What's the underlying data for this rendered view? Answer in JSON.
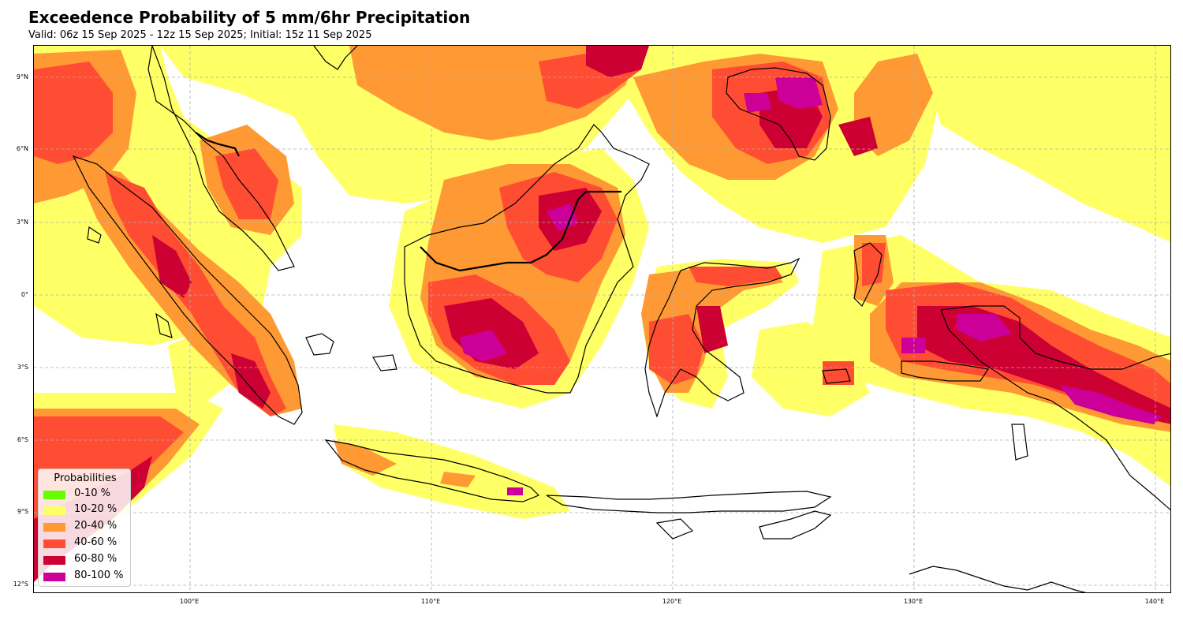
{
  "title": "Exceedence Probability of 5 mm/6hr Precipitation",
  "subtitle": "Valid: 06z 15 Sep 2025 - 12z 15 Sep 2025; Initial: 15z 11 Sep 2025",
  "lat_labels": [
    "9°N",
    "6°N",
    "3°N",
    "0°",
    "3°S",
    "6°S",
    "9°S",
    "12°S"
  ],
  "lon_labels": [
    "100°E",
    "110°E",
    "120°E",
    "130°E",
    "140°E"
  ],
  "legend": {
    "title": "Probabilities",
    "items": [
      {
        "label": "0-10 %",
        "color": "#66ff00"
      },
      {
        "label": "10-20 %",
        "color": "#ffff66"
      },
      {
        "label": "20-40 %",
        "color": "#ff9933"
      },
      {
        "label": "40-60 %",
        "color": "#ff4d33"
      },
      {
        "label": "60-80 %",
        "color": "#cc0033"
      },
      {
        "label": "80-100 %",
        "color": "#cc0099"
      }
    ]
  }
}
